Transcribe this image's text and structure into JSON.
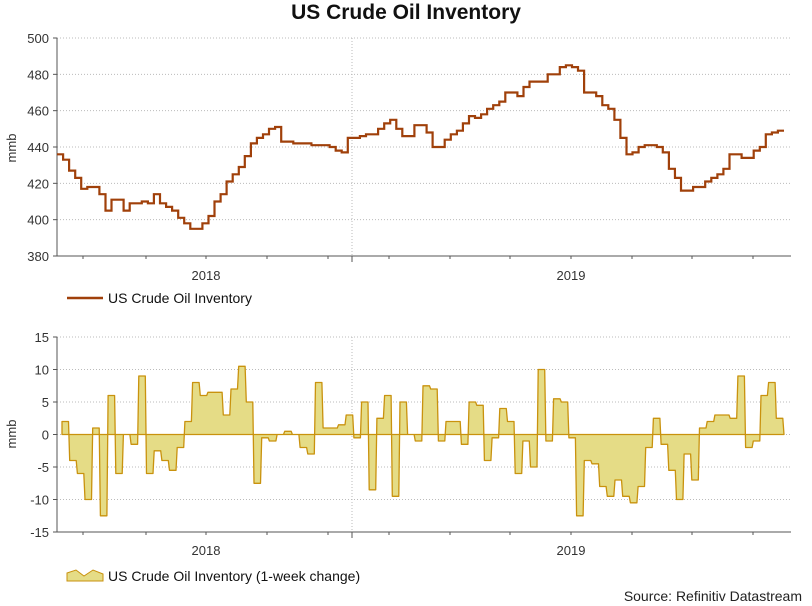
{
  "page": {
    "title": "US Crude Oil Inventory",
    "source": "Source: Refinitiv Datastream"
  },
  "chart_data": [
    {
      "type": "line",
      "title": "US Crude Oil Inventory",
      "ylabel": "mmb",
      "ylim": [
        380,
        500
      ],
      "yticks": [
        380,
        400,
        420,
        440,
        460,
        480,
        500
      ],
      "xticks": [
        "2018",
        "2019"
      ],
      "legend": "bottom-left",
      "grid": true,
      "colors": {
        "series": "#a0400a",
        "grid": "#bbbbbb"
      },
      "series": [
        {
          "name": "US Crude Oil Inventory",
          "x_range": [
            "2017-07",
            "2019-09"
          ],
          "values": [
            436,
            433,
            427,
            423,
            417,
            418,
            418,
            414,
            405,
            411,
            411,
            405,
            409,
            409,
            410,
            409,
            414,
            409,
            407,
            405,
            401,
            398,
            395,
            395,
            398,
            402,
            410,
            414,
            421,
            425,
            429,
            435,
            442,
            445,
            447,
            450,
            451,
            443,
            443,
            442,
            442,
            442,
            441,
            441,
            441,
            440,
            438,
            437,
            445,
            445,
            446,
            447,
            447,
            450,
            453,
            455,
            450,
            446,
            446,
            452,
            452,
            448,
            440,
            440,
            444,
            447,
            449,
            453,
            457,
            456,
            458,
            461,
            463,
            465,
            470,
            470,
            468,
            473,
            476,
            476,
            476,
            480,
            480,
            484,
            485,
            484,
            482,
            470,
            470,
            468,
            463,
            461,
            455,
            445,
            436,
            437,
            440,
            441,
            441,
            440,
            437,
            428,
            423,
            416,
            416,
            418,
            418,
            421,
            423,
            425,
            428,
            436,
            436,
            434,
            434,
            438,
            440,
            447,
            448,
            449
          ]
        }
      ]
    },
    {
      "type": "area",
      "title": "US Crude Oil Inventory (1-week change)",
      "ylabel": "mmb",
      "ylim": [
        -15,
        15
      ],
      "yticks": [
        -15,
        -10,
        -5,
        0,
        5,
        10,
        15
      ],
      "xticks": [
        "2018",
        "2019"
      ],
      "legend": "bottom-left",
      "grid": true,
      "colors": {
        "fill": "#e5dc86",
        "stroke": "#c9920e",
        "grid": "#bbbbbb"
      },
      "series": [
        {
          "name": "US Crude Oil Inventory (1-week change)",
          "x_range": [
            "2017-07",
            "2019-09"
          ],
          "values": [
            2,
            -4,
            -6,
            -10,
            1,
            -12.5,
            6,
            -6,
            0,
            -1.5,
            9,
            -6,
            -2.5,
            -4,
            -5.5,
            -2,
            2,
            8,
            6,
            6.5,
            6.5,
            3,
            7,
            10.5,
            5,
            -7.5,
            -0.5,
            -1,
            0,
            0.5,
            0,
            -2,
            -3,
            8,
            1,
            1,
            1.5,
            3,
            -0.5,
            5,
            -8.5,
            2.5,
            6,
            -9.5,
            5,
            0,
            -1,
            7.5,
            7,
            -1,
            2,
            2,
            -1.5,
            5,
            4.5,
            -4,
            -0.5,
            4,
            2,
            -6,
            -1,
            -5,
            10,
            -1,
            5.5,
            5,
            -0.5,
            -12.5,
            -4,
            -4.5,
            -8,
            -9.5,
            -7,
            -9.5,
            -10.5,
            -8,
            -2,
            2.5,
            -1.5,
            -5.5,
            -10,
            -3,
            -7,
            1,
            2,
            3,
            3,
            2.5,
            9,
            -2,
            -1,
            6,
            8,
            2.5
          ]
        }
      ]
    }
  ]
}
